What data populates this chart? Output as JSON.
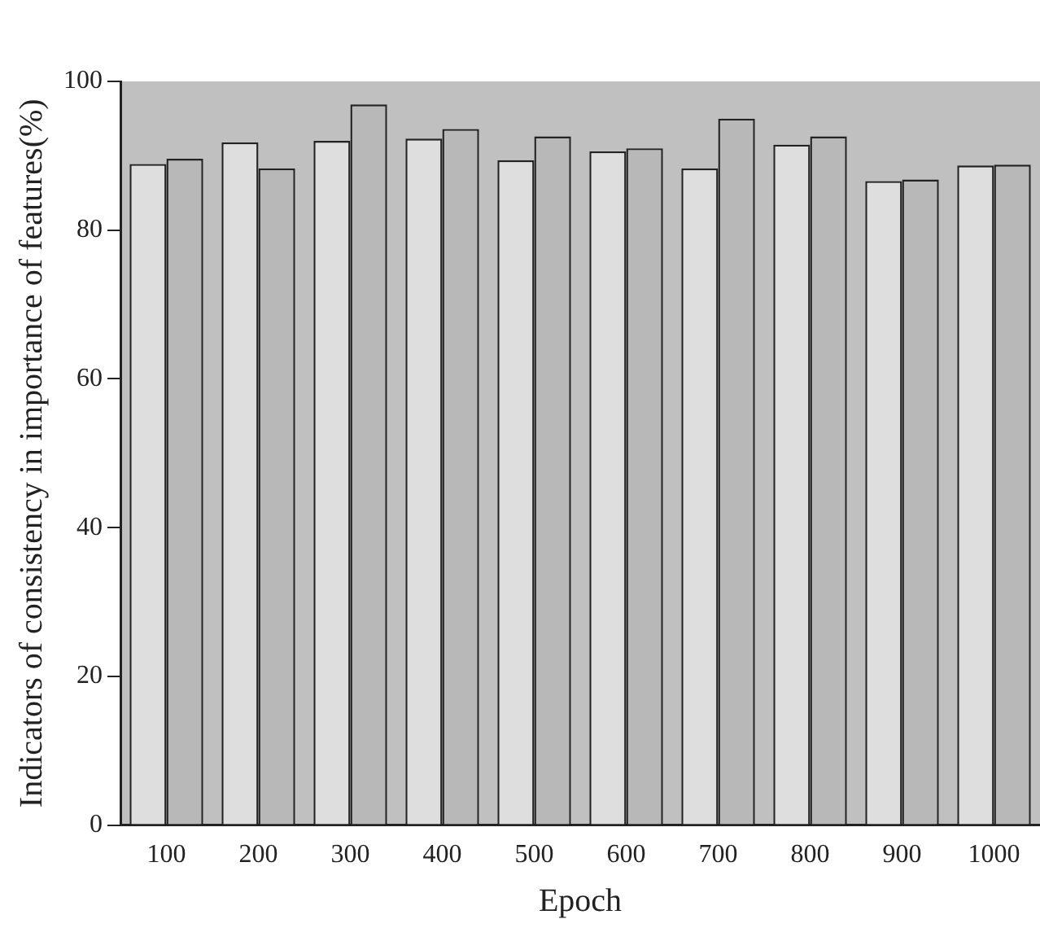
{
  "chart_data": {
    "type": "bar",
    "xlabel": "Epoch",
    "ylabel": "Indicators of consistency in importance of features(%)",
    "categories": [
      "100",
      "200",
      "300",
      "400",
      "500",
      "600",
      "700",
      "800",
      "900",
      "1000"
    ],
    "series": [
      {
        "color": "#dedede",
        "values": [
          88.9,
          91.8,
          92.0,
          92.3,
          89.4,
          90.6,
          88.3,
          91.5,
          86.6,
          88.7
        ]
      },
      {
        "color": "#b8b8b8",
        "values": [
          89.6,
          88.3,
          96.9,
          93.6,
          92.6,
          91.0,
          95.0,
          92.6,
          86.8,
          88.8
        ]
      }
    ],
    "ylim": [
      0,
      100
    ],
    "yticks": [
      0,
      20,
      40,
      60,
      80,
      100
    ],
    "grid": false,
    "legend": false
  }
}
